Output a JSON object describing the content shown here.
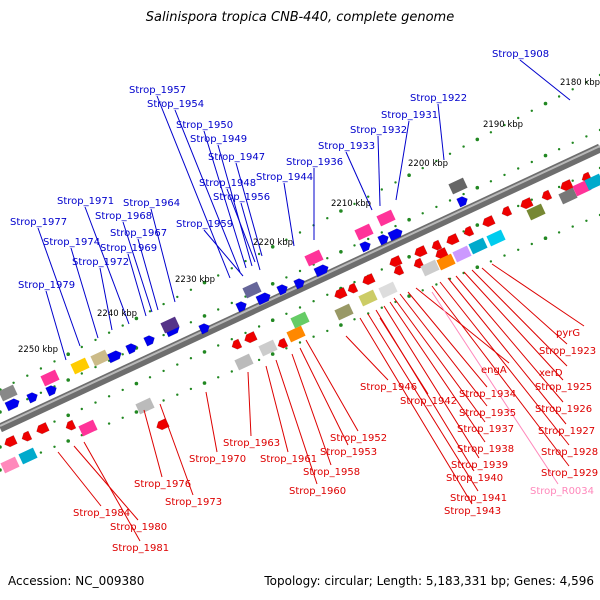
{
  "title": "Salinispora tropica CNB-440, complete genome",
  "accession": "Accession: NC_009380",
  "topology": "Topology: circular; Length: 5,183,331 bp; Genes: 4,596",
  "colors": {
    "forward_label": "#0000cc",
    "reverse_label": "#dd0000",
    "rna_label": "#ff88bb",
    "backbone": "#888888",
    "tick": "#228822"
  },
  "kbp_labels": [
    "2180 kbp",
    "2190 kbp",
    "2200 kbp",
    "2210 kbp",
    "2220 kbp",
    "2230 kbp",
    "2240 kbp",
    "2250 kbp"
  ],
  "forward_genes": [
    "Strop_1908",
    "Strop_1922",
    "Strop_1931",
    "Strop_1932",
    "Strop_1933",
    "Strop_1936",
    "Strop_1944",
    "Strop_1947",
    "Strop_1948",
    "Strop_1949",
    "Strop_1950",
    "Strop_1954",
    "Strop_1956",
    "Strop_1957",
    "Strop_1959",
    "Strop_1964",
    "Strop_1967",
    "Strop_1968",
    "Strop_1969",
    "Strop_1971",
    "Strop_1972",
    "Strop_1974",
    "Strop_1977",
    "Strop_1979"
  ],
  "reverse_genes": [
    "pyrG",
    "Strop_1923",
    "xerD",
    "Strop_1925",
    "Strop_1926",
    "Strop_1927",
    "Strop_1928",
    "Strop_1929",
    "engA",
    "Strop_1934",
    "Strop_1935",
    "Strop_1937",
    "Strop_1938",
    "Strop_1939",
    "Strop_1940",
    "Strop_1941",
    "Strop_1942",
    "Strop_1943",
    "Strop_1946",
    "Strop_1952",
    "Strop_1953",
    "Strop_1958",
    "Strop_1960",
    "Strop_1961",
    "Strop_1963",
    "Strop_1970",
    "Strop_1973",
    "Strop_1976",
    "Strop_1980",
    "Strop_1981",
    "Strop_1984"
  ],
  "rna_genes": [
    "Strop_R0034"
  ]
}
